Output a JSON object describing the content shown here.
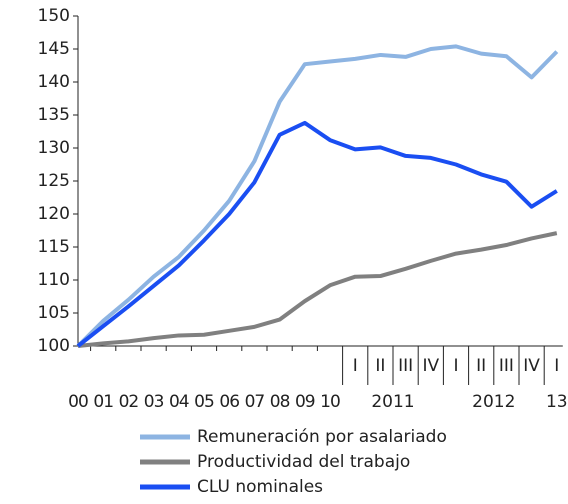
{
  "chart_data": {
    "type": "line",
    "categories": [
      "00",
      "01",
      "02",
      "03",
      "04",
      "05",
      "06",
      "07",
      "08",
      "09",
      "10",
      "I",
      "II",
      "III",
      "IV",
      "I",
      "II",
      "III",
      "IV",
      "I"
    ],
    "groups": [
      {
        "label": "2011",
        "from": 11,
        "to": 14
      },
      {
        "label": "2012",
        "from": 15,
        "to": 18
      },
      {
        "label": "13",
        "from": 19,
        "to": 19
      }
    ],
    "series": [
      {
        "name": "Remuneración por asalariado",
        "color": "#8db4e2",
        "values": [
          100,
          103.8,
          107,
          110.5,
          113.5,
          117.5,
          122,
          128,
          137,
          142.7,
          143.1,
          143.5,
          144.1,
          143.8,
          145,
          145.4,
          144.3,
          143.9,
          140.7,
          144.6
        ]
      },
      {
        "name": "Productividad del trabajo",
        "color": "#808080",
        "values": [
          100,
          100.4,
          100.7,
          101.2,
          101.6,
          101.7,
          102.3,
          102.9,
          104,
          106.8,
          109.2,
          110.5,
          110.6,
          111.7,
          112.9,
          114,
          114.6,
          115.3,
          116.3,
          117.1
        ]
      },
      {
        "name": "CLU nominales",
        "color": "#1a4ef2",
        "values": [
          100,
          103,
          106,
          109.1,
          112.2,
          116,
          120,
          124.8,
          132,
          133.8,
          131.2,
          129.8,
          130.1,
          128.8,
          128.5,
          127.5,
          126,
          124.9,
          121.1,
          123.5
        ]
      }
    ],
    "ylim": [
      100,
      150
    ],
    "yticks": [
      100,
      105,
      110,
      115,
      120,
      125,
      130,
      135,
      140,
      145,
      150
    ]
  }
}
